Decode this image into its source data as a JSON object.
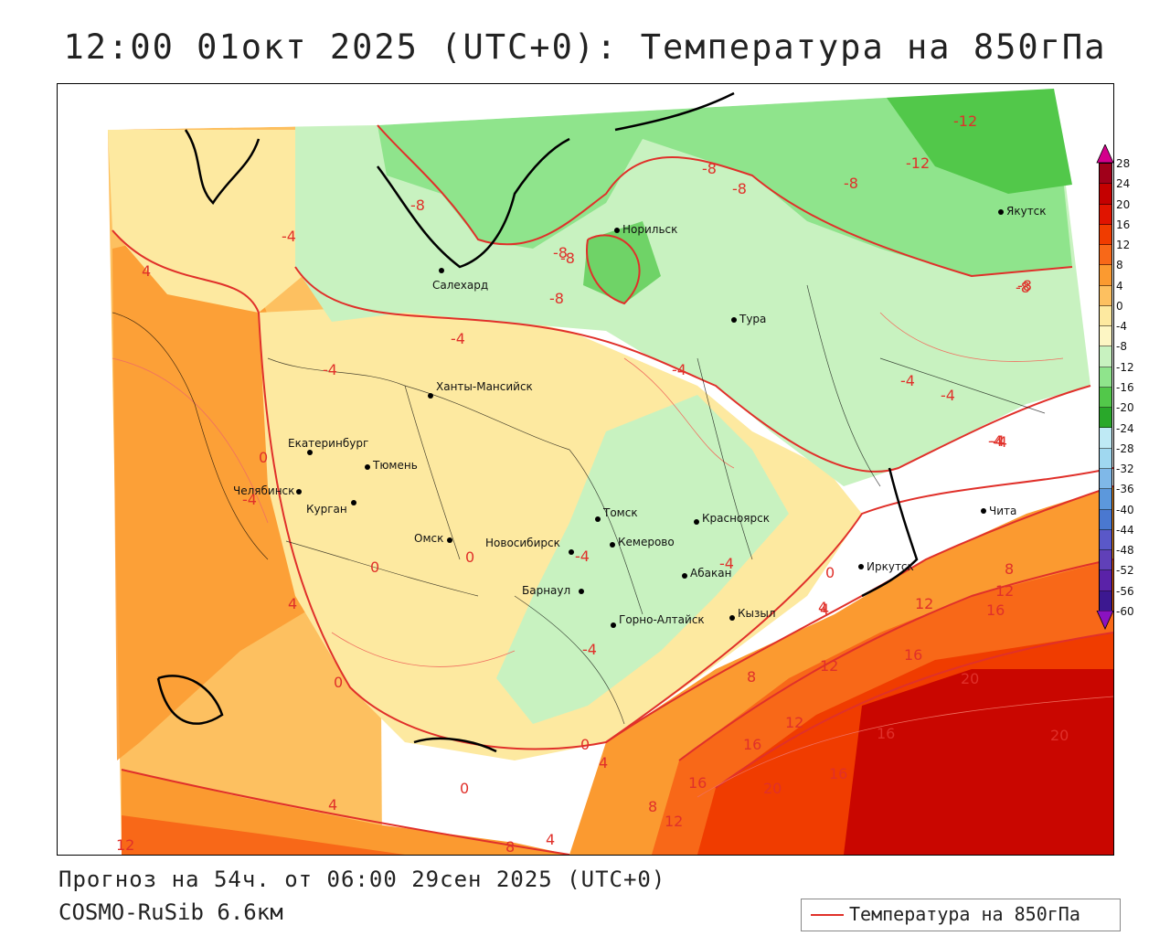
{
  "header": {
    "title": "12:00 01окт 2025 (UTC+0): Температура на 850гПа"
  },
  "footer": {
    "forecast": "Прогноз на 54ч. от 06:00 29сен 2025 (UTC+0)",
    "model": "COSMO-RuSib 6.6км"
  },
  "legend": {
    "label": "Температура на 850гПа",
    "color": "#e0302a"
  },
  "colorscale": {
    "labels": [
      "28",
      "24",
      "20",
      "16",
      "12",
      "8",
      "4",
      "0",
      "-4",
      "-8",
      "-12",
      "-16",
      "-20",
      "-24",
      "-28",
      "-32",
      "-36",
      "-40",
      "-44",
      "-48",
      "-52",
      "-56",
      "-60"
    ],
    "colors": [
      "#a0001a",
      "#c40000",
      "#e01400",
      "#f03c00",
      "#f86818",
      "#fb9a30",
      "#fdc060",
      "#fde9a0",
      "#fdf6c4",
      "#c8f2c0",
      "#8fe48c",
      "#52c84a",
      "#29a82a",
      "#bfeaf5",
      "#a0d8f0",
      "#7fb8e8",
      "#5c98dc",
      "#4a78d0",
      "#5a58c8",
      "#6040b8",
      "#5a22a8",
      "#3c1890",
      "#4a0c84"
    ],
    "top_arrow_color": "#d4008c",
    "bottom_arrow_color": "#8a12c0"
  },
  "cities": [
    {
      "name": "Норильск"
    },
    {
      "name": "Якутск"
    },
    {
      "name": "Салехард"
    },
    {
      "name": "Тура"
    },
    {
      "name": "Ханты-Мансийск"
    },
    {
      "name": "Екатеринбург"
    },
    {
      "name": "Тюмень"
    },
    {
      "name": "Челябинск"
    },
    {
      "name": "Курган"
    },
    {
      "name": "Омск"
    },
    {
      "name": "Новосибирск"
    },
    {
      "name": "Томск"
    },
    {
      "name": "Кемерово"
    },
    {
      "name": "Красноярск"
    },
    {
      "name": "Абакан"
    },
    {
      "name": "Барнаул"
    },
    {
      "name": "Горно-Алтайск"
    },
    {
      "name": "Кызыл"
    },
    {
      "name": "Иркутск"
    },
    {
      "name": "Чита"
    }
  ],
  "isotherm_labels": [
    "-12",
    "-12",
    "-8",
    "-8",
    "-8",
    "-8",
    "-8",
    "-8",
    "-8",
    "-4",
    "-4",
    "-4",
    "-4",
    "-4",
    "-4",
    "-4",
    "-4",
    "-4",
    "-4",
    "4",
    "0",
    "-4",
    "0",
    "0",
    "4",
    "0",
    "0",
    "0",
    "-4",
    "4",
    "0",
    "4",
    "8",
    "12",
    "8",
    "12",
    "16",
    "4",
    "16",
    "12",
    "20",
    "12",
    "16",
    "16",
    "20",
    "16",
    "20",
    "16",
    "4",
    "8",
    "12",
    "4",
    "12",
    "8",
    "-4",
    "-8",
    "-8"
  ]
}
